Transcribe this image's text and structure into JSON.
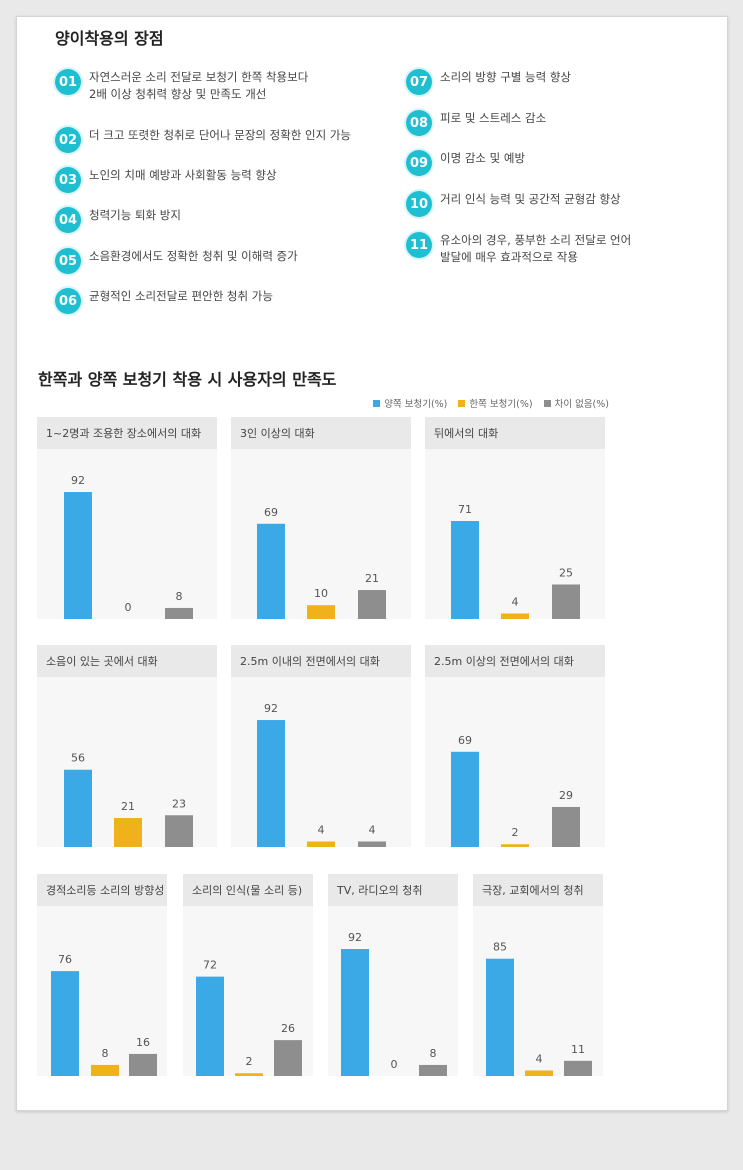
{
  "advantages": {
    "title": "양이착용의 장점",
    "items": [
      {
        "num": "01",
        "text": "자연스러운 소리 전달로 보청기 한쪽 착용보다\n2배 이상 청취력 향상 및 만족도 개선"
      },
      {
        "num": "02",
        "text": "더 크고 또렷한 청취로 단어나 문장의 정확한 인지 가능"
      },
      {
        "num": "03",
        "text": "노인의 치매 예방과 사회활동 능력 향상"
      },
      {
        "num": "04",
        "text": "청력기능 퇴화 방지"
      },
      {
        "num": "05",
        "text": "소음환경에서도 정확한 청취 및 이해력 증가"
      },
      {
        "num": "06",
        "text": "균형적인 소리전달로 편안한 청취 가능"
      },
      {
        "num": "07",
        "text": "소리의 방향 구별 능력 향상"
      },
      {
        "num": "08",
        "text": "피로 및 스트레스 감소"
      },
      {
        "num": "09",
        "text": "이명 감소 및 예방"
      },
      {
        "num": "10",
        "text": "거리 인식 능력 및 공간적 균형감 향상"
      },
      {
        "num": "11",
        "text": "유소아의 경우, 풍부한 소리 전달로 언어\n발달에 매우 효과적으로 작용"
      }
    ]
  },
  "colors": {
    "both": "#3aa9e6",
    "one": "#f0b21a",
    "none": "#8e8e8e",
    "badge": "#1fbfd1"
  },
  "chart_data": {
    "type": "bar",
    "title": "한쪽과 양쪽 보청기 착용 시 사용자의 만족도",
    "legend": [
      "양쪽 보청기(%)",
      "한쪽 보청기(%)",
      "차이 없음(%)"
    ],
    "legend_position": "top-right",
    "ylim": [
      0,
      100
    ],
    "panels": [
      {
        "title": "1~2명과 조용한 장소에서의 대화",
        "values": [
          92,
          0,
          8
        ]
      },
      {
        "title": "3인 이상의 대화",
        "values": [
          69,
          10,
          21
        ]
      },
      {
        "title": "뒤에서의 대화",
        "values": [
          71,
          4,
          25
        ]
      },
      {
        "title": "소음이 있는 곳에서 대화",
        "values": [
          56,
          21,
          23
        ]
      },
      {
        "title": "2.5m 이내의 전면에서의 대화",
        "values": [
          92,
          4,
          4
        ]
      },
      {
        "title": "2.5m 이상의 전면에서의 대화",
        "values": [
          69,
          2,
          29
        ]
      },
      {
        "title": "경적소리등 소리의 방향성",
        "values": [
          76,
          8,
          16
        ]
      },
      {
        "title": "소리의 인식(물 소리 등)",
        "values": [
          72,
          2,
          26
        ]
      },
      {
        "title": "TV, 라디오의 청취",
        "values": [
          92,
          0,
          8
        ]
      },
      {
        "title": "극장, 교회에서의 청취",
        "values": [
          85,
          4,
          11
        ]
      }
    ]
  }
}
